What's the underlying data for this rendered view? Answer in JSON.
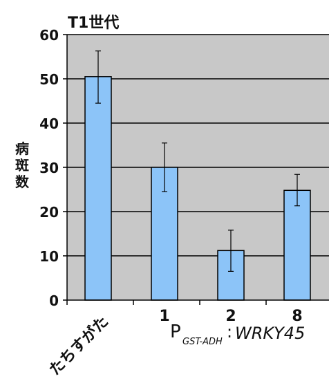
{
  "chart_data": {
    "type": "bar",
    "title": "T1世代",
    "ylabel": "病斑数",
    "ylim": [
      0,
      60
    ],
    "yticks": [
      0,
      10,
      20,
      30,
      40,
      50,
      60
    ],
    "categories": [
      "たちすがた",
      "1",
      "2",
      "8"
    ],
    "values": [
      50.5,
      30.0,
      11.2,
      24.8
    ],
    "errors_low": [
      44.5,
      24.5,
      6.5,
      21.3
    ],
    "errors_high": [
      56.3,
      35.5,
      15.8,
      28.4
    ],
    "group_label": {
      "prefix": "P",
      "subscript": "GST-ADH",
      "separator": ":",
      "gene": "WRKY45"
    },
    "grid": true,
    "bar_color": "#8CC4F8",
    "plot_background": "#C8C8C8"
  }
}
